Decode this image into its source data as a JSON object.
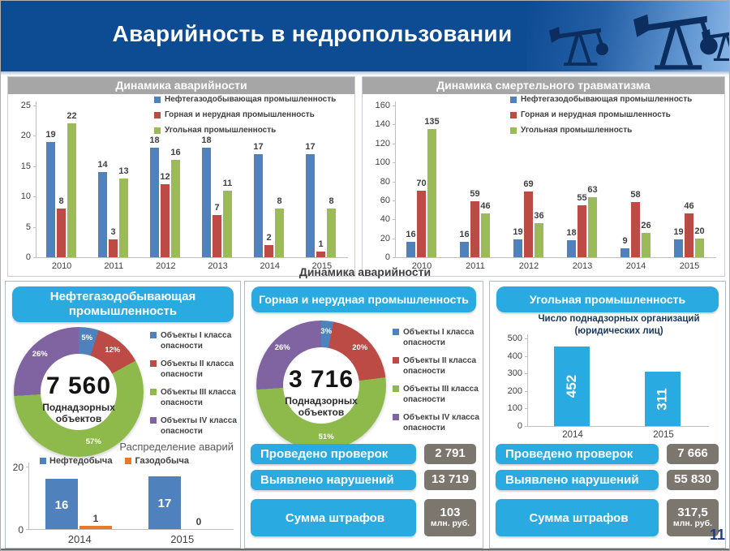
{
  "header": {
    "title": "Аварийность в недропользовании"
  },
  "section_title": "Динамика аварийности",
  "page_number": "11",
  "colors": {
    "banner_blue": "#0d4b92",
    "accent_cyan": "#29abe2",
    "title_bar_gray": "#a6a6a6",
    "value_box_gray": "#7b766e",
    "series_blue": "#4f81bd",
    "series_red": "#bc4b45",
    "series_green": "#9bbb59",
    "series_purple": "#8064a2",
    "series_orange": "#e8792b"
  },
  "chart_data": [
    {
      "id": "accident-dynamics",
      "type": "bar",
      "title": "Динамика аварийности",
      "categories": [
        "2010",
        "2011",
        "2012",
        "2013",
        "2014",
        "2015"
      ],
      "series": [
        {
          "name": "Нефтегазодобывающая промышленность",
          "color": "#4f81bd",
          "values": [
            19,
            14,
            18,
            18,
            17,
            17
          ]
        },
        {
          "name": "Горная и нерудная промышленность",
          "color": "#bc4b45",
          "values": [
            8,
            3,
            12,
            7,
            2,
            1
          ]
        },
        {
          "name": "Угольная промышленность",
          "color": "#9bbb59",
          "values": [
            22,
            13,
            16,
            11,
            8,
            8
          ]
        }
      ],
      "ylim": [
        0,
        25
      ],
      "ystep": 5,
      "grid": false,
      "legend_position": "top-right"
    },
    {
      "id": "fatal-injury-dynamics",
      "type": "bar",
      "title": "Динамика смертельного травматизма",
      "categories": [
        "2010",
        "2011",
        "2012",
        "2013",
        "2014",
        "2015"
      ],
      "series": [
        {
          "name": "Нефтегазодобывающая промышленность",
          "color": "#4f81bd",
          "values": [
            16,
            16,
            19,
            18,
            9,
            19
          ]
        },
        {
          "name": "Горная и нерудная промышленность",
          "color": "#bc4b45",
          "values": [
            70,
            59,
            69,
            55,
            58,
            46
          ]
        },
        {
          "name": "Угольная промышленность",
          "color": "#9bbb59",
          "values": [
            135,
            46,
            36,
            63,
            26,
            20
          ]
        }
      ],
      "ylim": [
        0,
        160
      ],
      "ystep": 20,
      "grid": false,
      "legend_position": "top-right"
    },
    {
      "id": "oil-gas-supervised-objects",
      "type": "pie",
      "center_value": "7 560",
      "center_label": "Поднадзорных объектов",
      "slices": [
        {
          "label": "Объекты I класса опасности",
          "pct": 5,
          "color": "#4f81bd"
        },
        {
          "label": "Объекты II класса опасности",
          "pct": 12,
          "color": "#bc4b45"
        },
        {
          "label": "Объекты III класса опасности",
          "pct": 57,
          "color": "#8dba4a"
        },
        {
          "label": "Объекты IV класса опасности",
          "pct": 26,
          "color": "#8064a2"
        }
      ]
    },
    {
      "id": "mining-supervised-objects",
      "type": "pie",
      "center_value": "3 716",
      "center_label": "Поднадзорных объектов",
      "slices": [
        {
          "label": "Объекты I класса опасности",
          "pct": 3,
          "color": "#4f81bd"
        },
        {
          "label": "Объекты II класса опасности",
          "pct": 20,
          "color": "#bc4b45"
        },
        {
          "label": "Объекты III класса опасности",
          "pct": 51,
          "color": "#8dba4a"
        },
        {
          "label": "Объекты IV класса опасности",
          "pct": 26,
          "color": "#8064a2"
        }
      ]
    },
    {
      "id": "oil-accident-split",
      "type": "bar",
      "title": "Распределение аварий",
      "categories": [
        "2014",
        "2015"
      ],
      "series": [
        {
          "name": "Нефтедобыча",
          "color": "#4f81bd",
          "values": [
            16,
            17
          ]
        },
        {
          "name": "Газодобыча",
          "color": "#e8792b",
          "values": [
            1,
            0
          ]
        }
      ],
      "ylim": [
        0,
        20
      ],
      "ystep": 20,
      "grid": false,
      "legend_position": "top"
    },
    {
      "id": "coal-supervised-organizations",
      "type": "bar",
      "title": "Число поднадзорных организаций (юридических лиц)",
      "categories": [
        "2014",
        "2015"
      ],
      "series": [
        {
          "name": "",
          "color": "#29abe2",
          "values": [
            452,
            311
          ]
        }
      ],
      "ylim": [
        0,
        500
      ],
      "ystep": 100,
      "grid": false,
      "legend_position": "none"
    }
  ],
  "panels": {
    "oil": {
      "title": "Нефтегазодобывающая промышленность"
    },
    "mining": {
      "title": "Горная и нерудная промышленность",
      "stats": [
        {
          "label": "Проведено проверок",
          "value": "2 791",
          "unit": ""
        },
        {
          "label": "Выявлено нарушений",
          "value": "13 719",
          "unit": ""
        },
        {
          "label": "Сумма штрафов",
          "value": "103",
          "unit": "млн. руб."
        }
      ]
    },
    "coal": {
      "title": "Угольная промышленность",
      "stats": [
        {
          "label": "Проведено проверок",
          "value": "7 666",
          "unit": ""
        },
        {
          "label": "Выявлено нарушений",
          "value": "55 830",
          "unit": ""
        },
        {
          "label": "Сумма штрафов",
          "value": "317,5",
          "unit": "млн. руб."
        }
      ]
    }
  }
}
